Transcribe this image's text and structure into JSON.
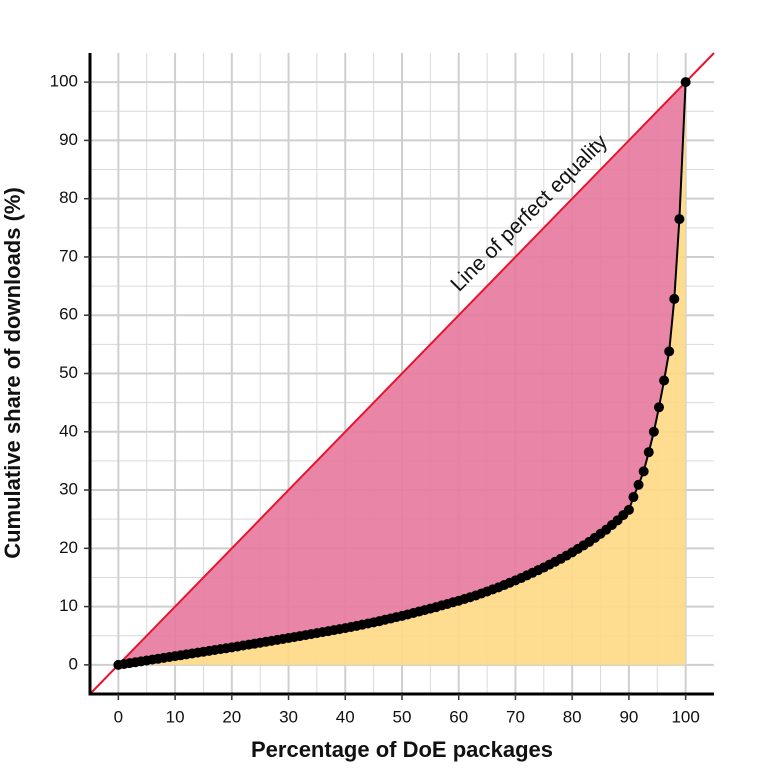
{
  "chart_data": {
    "type": "lorenz",
    "xlabel": "Percentage of DoE packages",
    "ylabel": "Cumulative share of downloads (%)",
    "annotation": "Line of perfect equality",
    "x": [
      0,
      1,
      2,
      3,
      4,
      5,
      6,
      7,
      8,
      9,
      10,
      11,
      12,
      13,
      14,
      15,
      16,
      17,
      18,
      19,
      20,
      21,
      22,
      23,
      24,
      25,
      26,
      27,
      28,
      29,
      30,
      31,
      32,
      33,
      34,
      35,
      36,
      37,
      38,
      39,
      40,
      41,
      42,
      43,
      44,
      45,
      46,
      47,
      48,
      49,
      50,
      51,
      52,
      53,
      54,
      55,
      56,
      57,
      58,
      59,
      60,
      61,
      62,
      63,
      64,
      65,
      66,
      67,
      68,
      69,
      70,
      71,
      72,
      73,
      74,
      75,
      76,
      77,
      78,
      79,
      80,
      81,
      82,
      83,
      84,
      85,
      86,
      87,
      88,
      89,
      90,
      90.8,
      91.7,
      92.6,
      93.5,
      94.4,
      95.3,
      96.2,
      97.1,
      98.0,
      98.9,
      100
    ],
    "values": [
      0,
      0.15,
      0.3,
      0.45,
      0.6,
      0.75,
      0.9,
      1.05,
      1.2,
      1.35,
      1.5,
      1.65,
      1.8,
      1.95,
      2.1,
      2.25,
      2.4,
      2.55,
      2.7,
      2.85,
      3.0,
      3.16,
      3.32,
      3.48,
      3.64,
      3.8,
      3.96,
      4.12,
      4.28,
      4.44,
      4.6,
      4.77,
      4.94,
      5.11,
      5.28,
      5.45,
      5.62,
      5.79,
      5.96,
      6.13,
      6.3,
      6.5,
      6.7,
      6.9,
      7.1,
      7.3,
      7.5,
      7.75,
      7.95,
      8.2,
      8.4,
      8.65,
      8.9,
      9.15,
      9.4,
      9.65,
      9.9,
      10.2,
      10.45,
      10.75,
      11.0,
      11.3,
      11.6,
      11.9,
      12.25,
      12.6,
      12.95,
      13.3,
      13.7,
      14.1,
      14.5,
      14.9,
      15.35,
      15.8,
      16.25,
      16.7,
      17.2,
      17.7,
      18.2,
      18.75,
      19.3,
      19.9,
      20.5,
      21.1,
      21.8,
      22.5,
      23.2,
      24.0,
      24.8,
      25.7,
      26.6,
      28.8,
      30.9,
      33.2,
      36.5,
      40.0,
      44.2,
      48.8,
      53.8,
      62.8,
      76.5,
      100
    ],
    "color": "#000000",
    "equality_color": "#e8142e",
    "gap_color": "#e7799f",
    "below_color": "#fed985",
    "xlim": [
      -5,
      105
    ],
    "ylim": [
      -5,
      105
    ],
    "xticks": [
      0,
      10,
      20,
      30,
      40,
      50,
      60,
      70,
      80,
      90,
      100
    ],
    "yticks": [
      0,
      10,
      20,
      30,
      40,
      50,
      60,
      70,
      80,
      90,
      100
    ],
    "grid": true
  }
}
